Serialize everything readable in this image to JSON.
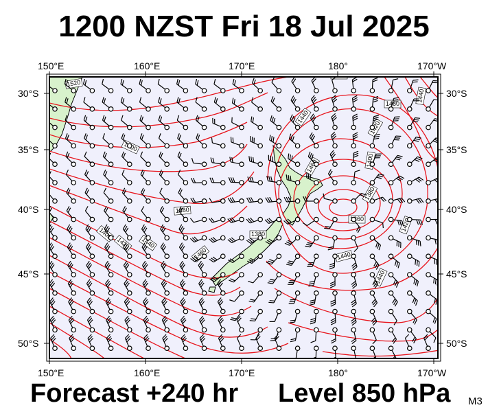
{
  "title": "1200 NZST Fri 18 Jul 2025",
  "forecast": "Forecast +240 hr",
  "level": "Level 850 hPa",
  "model": "M3",
  "map": {
    "lon_labels": [
      "150°E",
      "160°E",
      "170°E",
      "180°",
      "170°W"
    ],
    "lat_labels": [
      "30°S",
      "35°S",
      "40°S",
      "45°S",
      "50°S"
    ],
    "contour_labels": [
      "1520",
      "1500",
      "1480",
      "1460",
      "1440",
      "1420",
      "1400",
      "1380",
      "1360",
      "1440",
      "1440",
      "1420",
      "1400",
      "1480",
      "1460",
      "1440",
      "1420",
      "1440",
      "1460",
      "1380"
    ],
    "colors": {
      "ocean": "#f0f0fc",
      "land": "#d8f2cc",
      "contour": "#e8141c",
      "wind": "#000000"
    }
  }
}
